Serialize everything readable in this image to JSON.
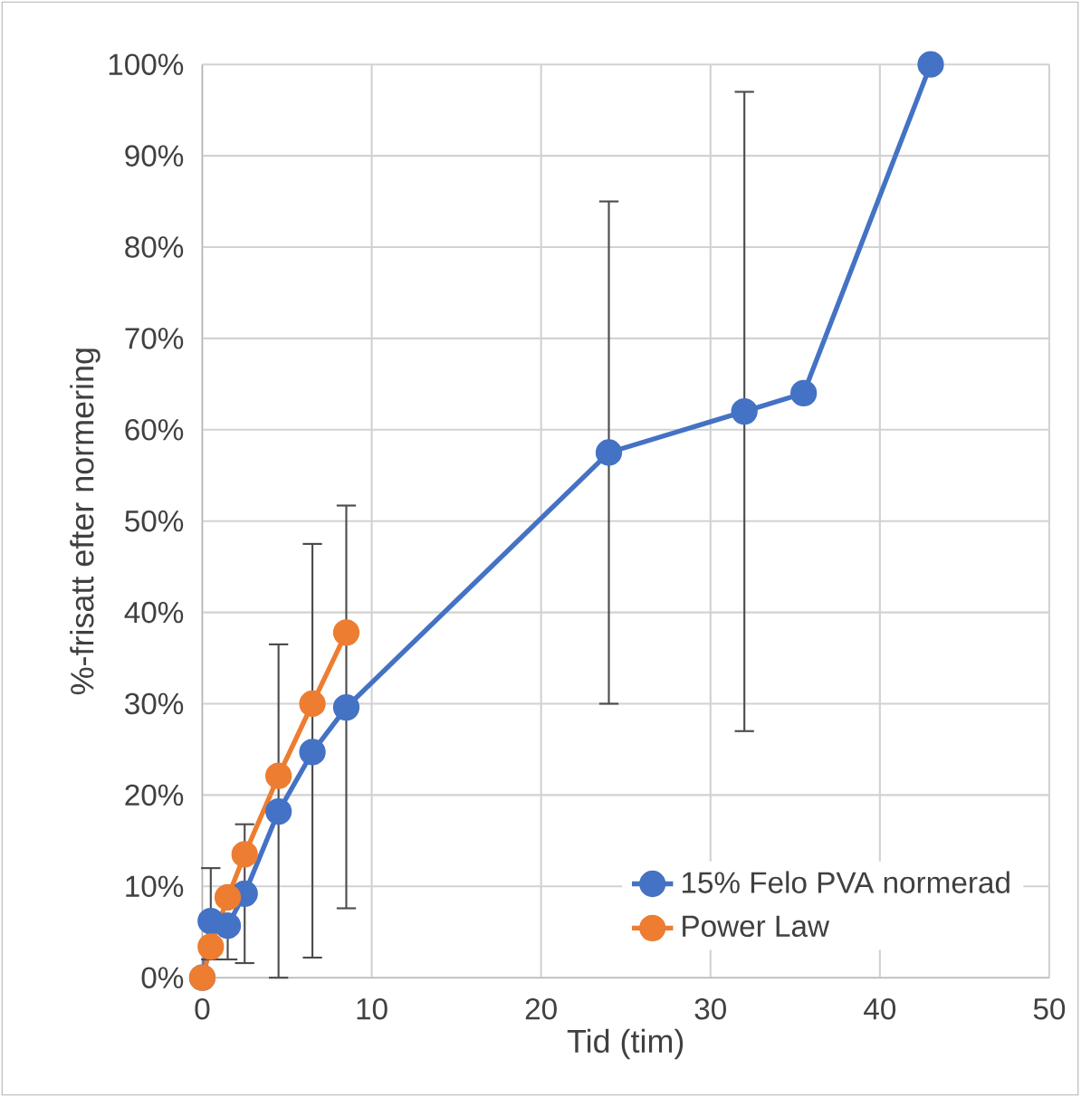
{
  "chart_data": {
    "type": "line",
    "xlabel": "Tid (tim)",
    "ylabel": "%-frisatt efter normering",
    "xlim": [
      0,
      50
    ],
    "xticks": [
      0,
      10,
      20,
      30,
      40,
      50
    ],
    "ylim": [
      0,
      100
    ],
    "yticks": [
      {
        "value": 0,
        "label": "0%"
      },
      {
        "value": 10,
        "label": "10%"
      },
      {
        "value": 20,
        "label": "20%"
      },
      {
        "value": 30,
        "label": "30%"
      },
      {
        "value": 40,
        "label": "40%"
      },
      {
        "value": 50,
        "label": "50%"
      },
      {
        "value": 60,
        "label": "60%"
      },
      {
        "value": 70,
        "label": "70%"
      },
      {
        "value": 80,
        "label": "80%"
      },
      {
        "value": 90,
        "label": "90%"
      },
      {
        "value": 100,
        "label": "100%"
      }
    ],
    "grid": true,
    "legend": "bottom right",
    "marker": "circle",
    "line_style": "solid",
    "series": [
      {
        "name": "15% Felo PVA normerad",
        "color": "#4472c4",
        "x": [
          0,
          0.5,
          1.5,
          2.5,
          4.5,
          6.5,
          8.5,
          24,
          32,
          35.5,
          43
        ],
        "values": [
          0,
          6.2,
          5.7,
          9.2,
          18.2,
          24.7,
          29.6,
          57.5,
          62,
          64,
          100
        ],
        "errors": [
          null,
          [
            2,
            12
          ],
          [
            2,
            5.7
          ],
          [
            1.6,
            16.8
          ],
          [
            0,
            36.5
          ],
          [
            2.2,
            47.5
          ],
          [
            7.6,
            51.7
          ],
          [
            30,
            85
          ],
          [
            27,
            97
          ],
          null,
          null
        ]
      },
      {
        "name": "Power Law",
        "color": "#ed7d31",
        "x": [
          0,
          0.5,
          1.5,
          2.5,
          4.5,
          6.5,
          8.5
        ],
        "values": [
          0,
          3.4,
          8.8,
          13.5,
          22.1,
          30,
          37.8
        ]
      }
    ]
  }
}
